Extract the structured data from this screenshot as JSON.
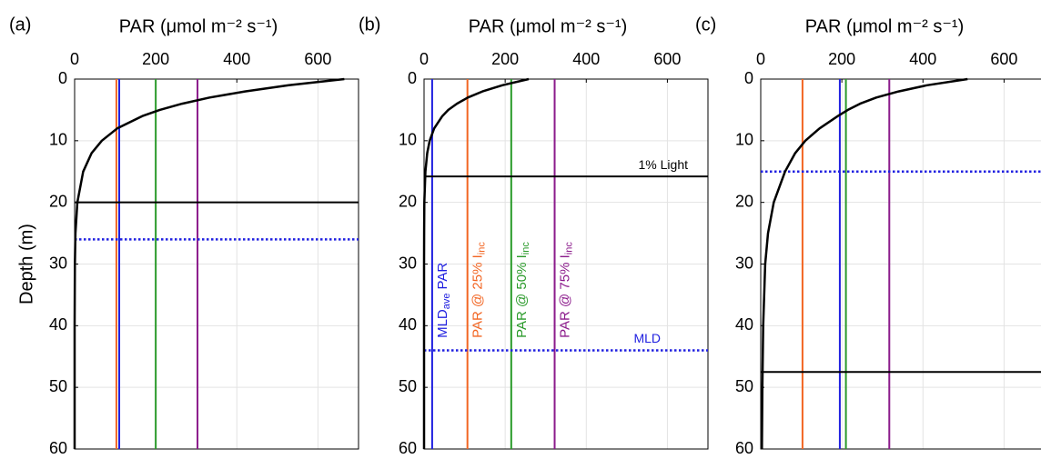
{
  "chart_data": [
    {
      "type": "line",
      "panel_label": "(a)",
      "xlabel": "PAR (μmol m⁻² s⁻¹)",
      "ylabel": "Depth (m)",
      "xlim": [
        0,
        700
      ],
      "xticks": [
        0,
        200,
        400,
        600
      ],
      "ylim": [
        0,
        60
      ],
      "yticks": [
        0,
        10,
        20,
        30,
        40,
        50,
        60
      ],
      "y_reversed": true,
      "grid": true,
      "profile": {
        "color": "#000000",
        "depth": [
          0,
          1,
          2,
          3,
          4,
          5,
          6,
          8,
          10,
          12,
          15,
          20,
          25,
          30,
          40,
          50,
          60
        ],
        "values": [
          665,
          528,
          420,
          333,
          265,
          210,
          167,
          105,
          67,
          42,
          21,
          6.7,
          2.1,
          0.7,
          0.07,
          0,
          0
        ]
      },
      "vlines": [
        {
          "value": 103,
          "color": "#f26522"
        },
        {
          "value": 110,
          "color": "#2020e0"
        },
        {
          "value": 200,
          "color": "#2a9a2a"
        },
        {
          "value": 303,
          "color": "#8b1a8b"
        }
      ],
      "hlines": [
        {
          "value": 20,
          "color": "#000000",
          "style": "solid"
        },
        {
          "value": 26,
          "color": "#2020e0",
          "style": "dotted"
        }
      ]
    },
    {
      "type": "line",
      "panel_label": "(b)",
      "xlabel": "PAR (μmol m⁻² s⁻¹)",
      "xlim": [
        0,
        700
      ],
      "xticks": [
        0,
        200,
        400,
        600
      ],
      "ylim": [
        0,
        60
      ],
      "yticks": [
        0,
        10,
        20,
        30,
        40,
        50,
        60
      ],
      "y_reversed": true,
      "grid": true,
      "profile": {
        "color": "#000000",
        "depth": [
          0,
          1,
          2,
          3,
          4,
          5,
          6,
          8,
          10,
          12,
          15,
          20,
          25,
          30,
          40,
          50,
          60
        ],
        "values": [
          258,
          193,
          144,
          108,
          81,
          60,
          45,
          25,
          14,
          7.9,
          3.3,
          0.76,
          0.18,
          0,
          0,
          0,
          0
        ]
      },
      "vlines": [
        {
          "value": 20,
          "color": "#2020e0",
          "label": [
            "MLD",
            "ave",
            "PAR"
          ]
        },
        {
          "value": 107,
          "color": "#f26522",
          "label": [
            "PAR @ 25% I",
            "inc"
          ]
        },
        {
          "value": 215,
          "color": "#2a9a2a",
          "label": [
            "PAR @ 50% I",
            "inc"
          ]
        },
        {
          "value": 322,
          "color": "#8b1a8b",
          "label": [
            "PAR @ 75% I",
            "inc"
          ]
        }
      ],
      "hlines": [
        {
          "value": 15.8,
          "color": "#000000",
          "style": "solid",
          "label": "1% Light"
        },
        {
          "value": 44,
          "color": "#2020e0",
          "style": "dotted",
          "label": "MLD"
        }
      ]
    },
    {
      "type": "line",
      "panel_label": "(c)",
      "xlabel": "PAR (μmol m⁻² s⁻¹)",
      "xlim": [
        0,
        700
      ],
      "xticks": [
        0,
        200,
        400,
        600
      ],
      "ylim": [
        0,
        60
      ],
      "yticks": [
        0,
        10,
        20,
        30,
        40,
        50,
        60
      ],
      "y_reversed": true,
      "grid": true,
      "profile": {
        "color": "#000000",
        "depth": [
          0,
          1,
          2,
          3,
          4,
          5,
          6,
          8,
          10,
          12,
          15,
          20,
          25,
          30,
          40,
          50,
          60
        ],
        "values": [
          510,
          410,
          340,
          285,
          245,
          215,
          190,
          145,
          110,
          85,
          60,
          32,
          18,
          11,
          6,
          4,
          3
        ]
      },
      "vlines": [
        {
          "value": 103,
          "color": "#f26522"
        },
        {
          "value": 195,
          "color": "#2020e0"
        },
        {
          "value": 210,
          "color": "#2a9a2a"
        },
        {
          "value": 317,
          "color": "#8b1a8b"
        }
      ],
      "hlines": [
        {
          "value": 47.5,
          "color": "#000000",
          "style": "solid"
        },
        {
          "value": 15,
          "color": "#2020e0",
          "style": "dotted"
        }
      ]
    }
  ]
}
